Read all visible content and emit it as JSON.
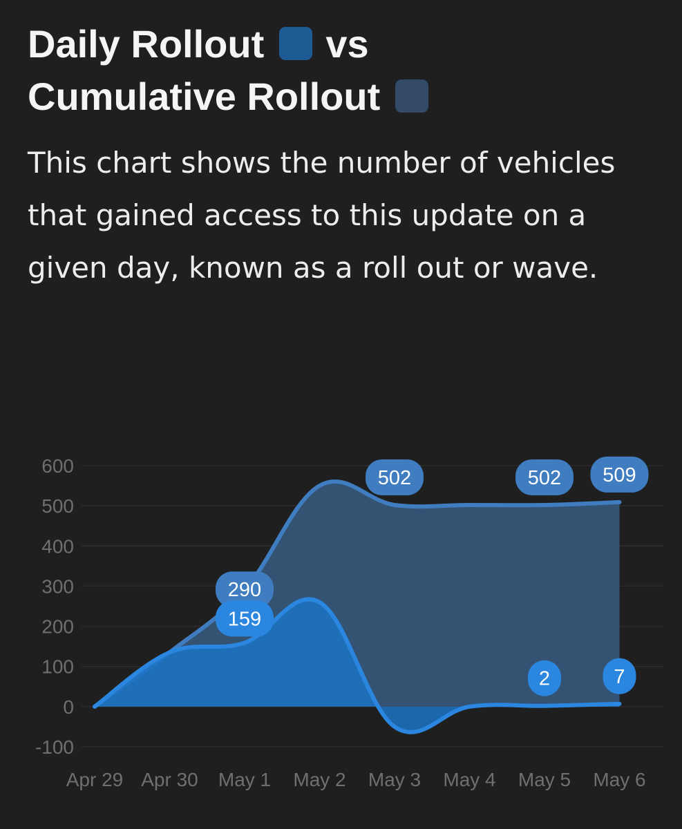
{
  "header": {
    "title_line1": "Daily Rollout",
    "title_vs": "vs",
    "title_line2": "Cumulative Rollout",
    "description": "This chart shows the number of vehicles that gained access to this update on a given day, known as a roll out or wave."
  },
  "colors": {
    "background": "#1f1f1f",
    "daily": "#1c73c4",
    "daily_line": "#2a86df",
    "cumulative_fill": "#36587b",
    "cumulative_line": "#3f7cc0",
    "daily_swatch": "#1d5b94",
    "cumulative_swatch": "#334b68"
  },
  "chart_data": {
    "type": "area",
    "title": "",
    "xlabel": "",
    "ylabel": "",
    "categories": [
      "Apr 29",
      "Apr 30",
      "May 1",
      "May 2",
      "May 3",
      "May 4",
      "May 5",
      "May 6"
    ],
    "ylim": [
      -100,
      600
    ],
    "yticks": [
      600,
      500,
      400,
      300,
      200,
      100,
      0,
      -100
    ],
    "grid": true,
    "series": [
      {
        "key": "cumulative",
        "values": [
          0,
          135,
          290,
          550,
          502,
          502,
          502,
          509
        ],
        "labels": [
          null,
          null,
          "290",
          null,
          "502",
          null,
          "502",
          "509"
        ]
      },
      {
        "key": "daily",
        "values": [
          0,
          135,
          159,
          260,
          -50,
          0,
          2,
          7
        ],
        "labels": [
          null,
          null,
          "159",
          null,
          null,
          null,
          "2",
          "7"
        ]
      }
    ]
  }
}
